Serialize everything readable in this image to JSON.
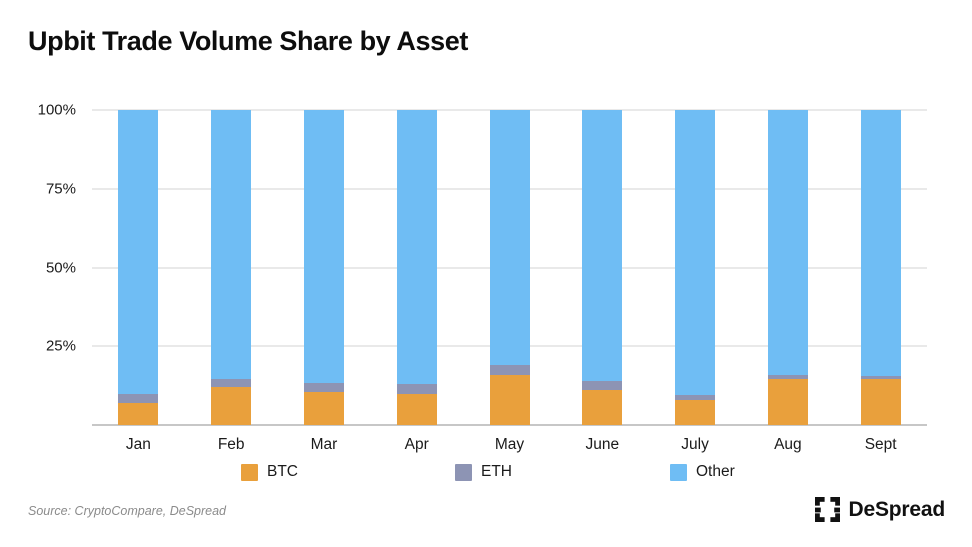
{
  "title": "Upbit Trade Volume Share by Asset",
  "source": "Source: CryptoCompare, DeSpread",
  "brand": {
    "name": "DeSpread"
  },
  "chart_data": {
    "type": "bar",
    "stacked": true,
    "unit": "%",
    "title": "Upbit Trade Volume Share by Asset",
    "xlabel": "",
    "ylabel": "",
    "ylim": [
      0,
      100
    ],
    "grid": "horizontal",
    "legend_position": "bottom",
    "categories": [
      "Jan",
      "Feb",
      "Mar",
      "Apr",
      "May",
      "June",
      "July",
      "Aug",
      "Sept"
    ],
    "series": [
      {
        "name": "BTC",
        "color": "#E9A03C",
        "values": [
          7,
          12,
          10.5,
          10,
          16,
          11,
          8,
          14.5,
          14.5
        ]
      },
      {
        "name": "ETH",
        "color": "#8D94B4",
        "values": [
          3,
          2.5,
          3,
          3,
          3,
          3,
          1.5,
          1.5,
          1
        ]
      },
      {
        "name": "Other",
        "color": "#6FBDF4",
        "values": [
          90,
          85.5,
          86.5,
          87,
          81,
          86,
          90.5,
          84,
          84.5
        ]
      }
    ],
    "yticks": [
      {
        "label": "100%",
        "value": 100
      },
      {
        "label": "75%",
        "value": 75
      },
      {
        "label": "50%",
        "value": 50
      },
      {
        "label": "25%",
        "value": 25
      }
    ]
  },
  "legend": {
    "items": [
      {
        "label": "BTC",
        "x": 241
      },
      {
        "label": "ETH",
        "x": 455
      },
      {
        "label": "Other",
        "x": 670
      }
    ]
  }
}
